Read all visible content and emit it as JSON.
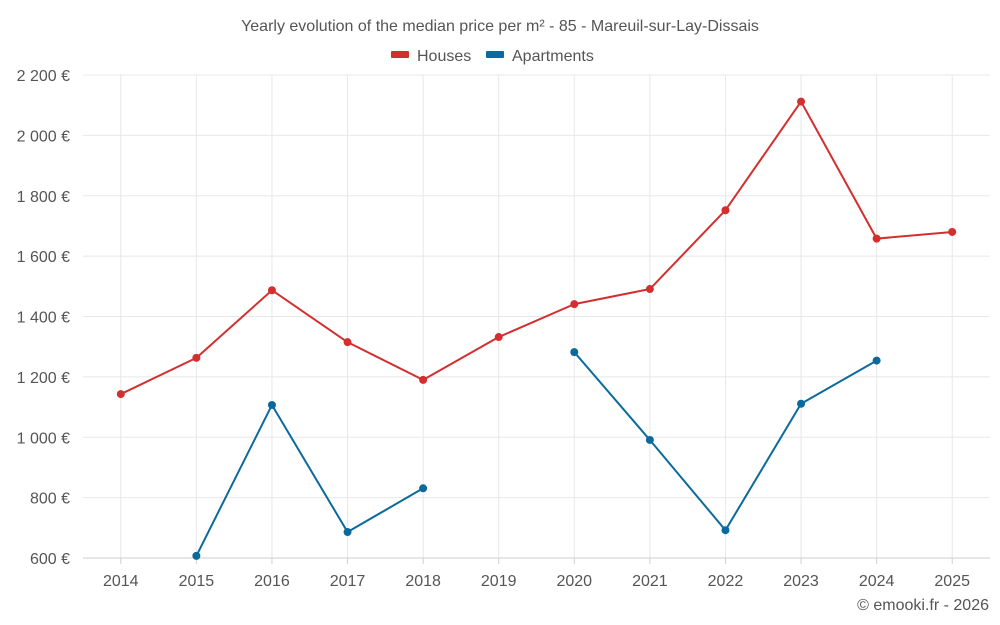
{
  "chart_data": {
    "type": "line",
    "title": "Yearly evolution of the median price per m² - 85 - Mareuil-sur-Lay-Dissais",
    "categories": [
      "2014",
      "2015",
      "2016",
      "2017",
      "2018",
      "2019",
      "2020",
      "2021",
      "2022",
      "2023",
      "2024",
      "2025"
    ],
    "y_ticks": [
      600,
      800,
      1000,
      1200,
      1400,
      1600,
      1800,
      2000,
      2200
    ],
    "y_tick_labels": [
      "600 €",
      "800 €",
      "1 000 €",
      "1 200 €",
      "1 400 €",
      "1 600 €",
      "1 800 €",
      "2 000 €",
      "2 200 €"
    ],
    "ylim": [
      600,
      2200
    ],
    "grid": true,
    "legend_position": "top-center",
    "series": [
      {
        "name": "Houses",
        "color": "#d32f2f",
        "values": [
          1143,
          1263,
          1487,
          1315,
          1190,
          1332,
          1441,
          1491,
          1752,
          2112,
          1658,
          1680
        ]
      },
      {
        "name": "Apartments",
        "color": "#0a6a9c",
        "values": [
          null,
          607,
          1107,
          686,
          831,
          null,
          1282,
          991,
          692,
          1111,
          1254,
          null
        ]
      }
    ],
    "credit": "© emooki.fr - 2026"
  }
}
